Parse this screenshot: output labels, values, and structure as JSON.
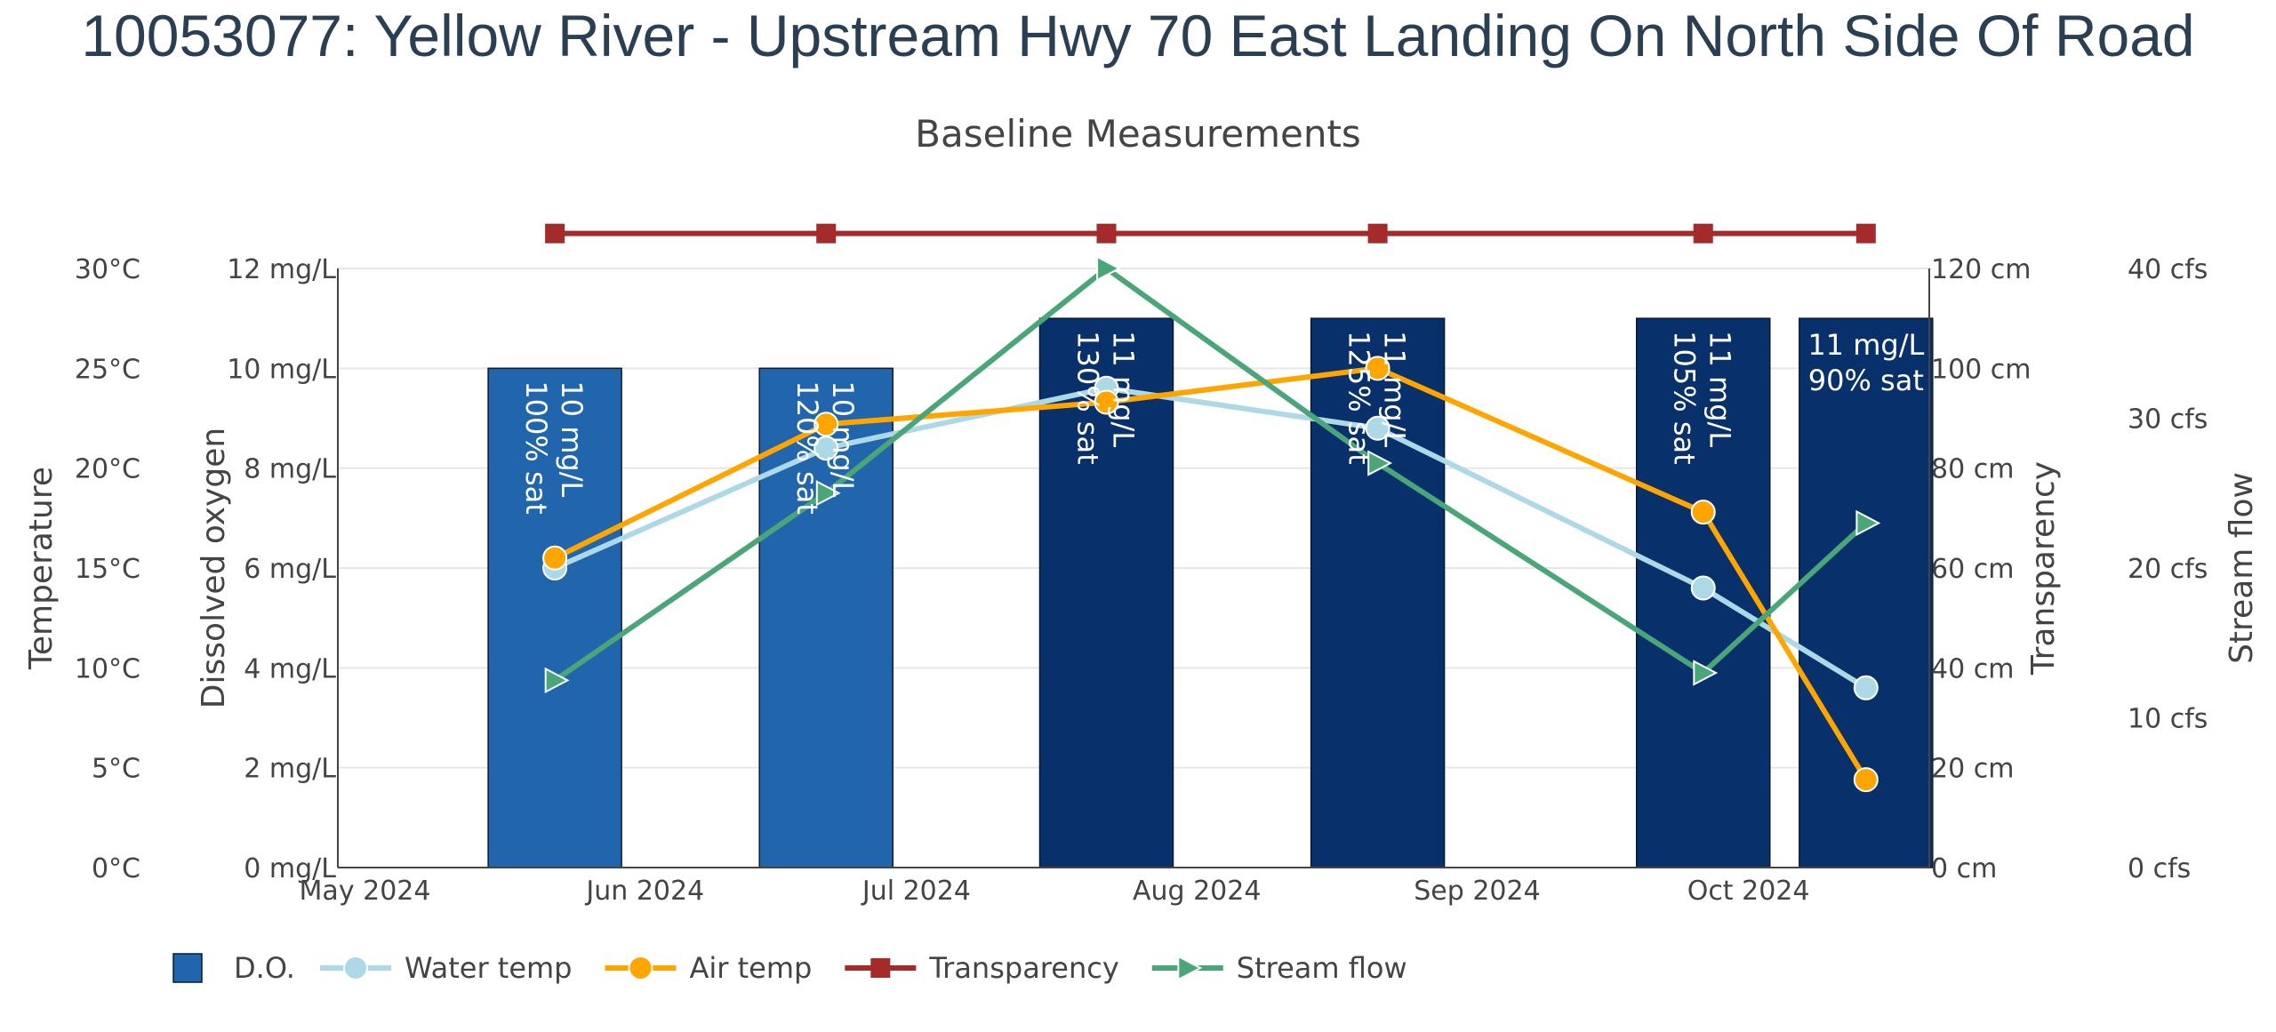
{
  "page": {
    "title": "10053077: Yellow River - Upstream Hwy 70 East Landing On North Side Of Road"
  },
  "chart_data": {
    "type": "bar",
    "title": "Baseline Measurements",
    "categories": [
      "May 2024",
      "Jun 2024",
      "Jul 2024",
      "Aug 2024",
      "Sep 2024",
      "Oct 2024"
    ],
    "x_dates": [
      "2024-05-22",
      "2024-06-21",
      "2024-07-22",
      "2024-08-21",
      "2024-09-26",
      "2024-10-14"
    ],
    "x_ticks": [
      {
        "date": "2024-05-01",
        "label": "May 2024"
      },
      {
        "date": "2024-06-01",
        "label": "Jun 2024"
      },
      {
        "date": "2024-07-01",
        "label": "Jul 2024"
      },
      {
        "date": "2024-08-01",
        "label": "Aug 2024"
      },
      {
        "date": "2024-09-01",
        "label": "Sep 2024"
      },
      {
        "date": "2024-10-01",
        "label": "Oct 2024"
      }
    ],
    "x_range": [
      "2024-04-28",
      "2024-10-21"
    ],
    "axes": {
      "temperature": {
        "label": "Temperature",
        "range": [
          0,
          30
        ],
        "ticks": [
          "0°C",
          "5°C",
          "10°C",
          "15°C",
          "20°C",
          "25°C",
          "30°C"
        ]
      },
      "dissolved_oxygen": {
        "label": "Dissolved oxygen",
        "range": [
          0,
          12
        ],
        "ticks": [
          "0 mg/L",
          "2 mg/L",
          "4 mg/L",
          "6 mg/L",
          "8 mg/L",
          "10 mg/L",
          "12 mg/L"
        ]
      },
      "transparency": {
        "label": "Transparency",
        "range": [
          0,
          120
        ],
        "ticks": [
          "0 cm",
          "20 cm",
          "40 cm",
          "60 cm",
          "80 cm",
          "100 cm",
          "120 cm"
        ]
      },
      "stream_flow": {
        "label": "Stream flow",
        "range": [
          0,
          40
        ],
        "ticks": [
          "0 cfs",
          "10 cfs",
          "20 cfs",
          "30 cfs",
          "40 cfs"
        ]
      }
    },
    "series": [
      {
        "name": "D.O.",
        "kind": "bar",
        "axis": "dissolved_oxygen",
        "values": [
          10,
          10,
          11,
          11,
          11,
          11
        ],
        "bar_colors": [
          "#2166ac",
          "#2166ac",
          "#08306b",
          "#08306b",
          "#08306b",
          "#08306b"
        ],
        "labels": [
          [
            "10 mg/L",
            "100% sat"
          ],
          [
            "10 mg/L",
            "120% sat"
          ],
          [
            "11 mg/L",
            "130% sat"
          ],
          [
            "11 mg/L",
            "125% sat"
          ],
          [
            "11 mg/L",
            "105% sat"
          ],
          [
            "11 mg/L",
            "90% sat"
          ]
        ],
        "label_orientation": [
          "vertical",
          "vertical",
          "vertical",
          "vertical",
          "vertical",
          "horizontal"
        ]
      },
      {
        "name": "Water temp",
        "kind": "line",
        "axis": "temperature",
        "color": "#add8e6",
        "marker": "circle",
        "values": [
          15,
          21,
          24,
          22,
          14,
          9
        ]
      },
      {
        "name": "Air temp",
        "kind": "line",
        "axis": "temperature",
        "color": "#ffa500",
        "marker": "circle",
        "values": [
          15.5,
          22.2,
          23.3,
          25,
          17.8,
          4.4
        ]
      },
      {
        "name": "Transparency",
        "kind": "line",
        "axis": "transparency",
        "color": "#a52a2a",
        "marker": "square",
        "values": [
          127,
          127,
          127,
          127,
          127,
          127
        ]
      },
      {
        "name": "Stream flow",
        "kind": "line",
        "axis": "stream_flow",
        "color": "#4aa578",
        "marker": "triangle-right",
        "values": [
          12.5,
          25,
          40,
          27,
          13,
          23
        ]
      }
    ],
    "legend_position": "bottom-left",
    "grid": true
  }
}
